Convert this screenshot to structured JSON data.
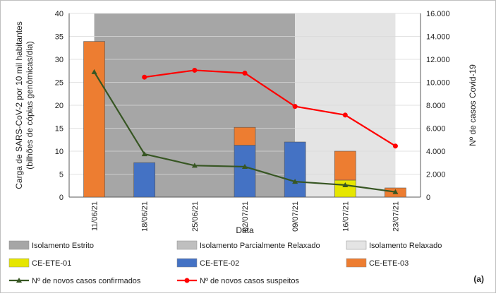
{
  "chart_data": {
    "type": "bar+line",
    "xlabel": "Data",
    "ylabel_left": "Carga de SARS-CoV-2 por 10 mil habitantes (bilhões de cópias genômicas/dia)",
    "ylabel_left_lines": [
      "Carga de SARS-CoV-2 por 10 mil habitantes",
      "(bilhões de cópias genômicas/dia)"
    ],
    "ylabel_right": "Nº de casos Covid-19",
    "ylim_left": [
      0,
      40
    ],
    "yticks_left": [
      "0",
      "5",
      "10",
      "15",
      "20",
      "25",
      "30",
      "35",
      "40"
    ],
    "ylim_right": [
      0,
      16000
    ],
    "yticks_right": [
      "0",
      "2.000",
      "4.000",
      "6.000",
      "8.000",
      "10.000",
      "12.000",
      "14.000",
      "16.000"
    ],
    "categories": [
      "11/06/21",
      "18/06/21",
      "25/06/21",
      "02/07/21",
      "09/07/21",
      "16/07/21",
      "23/07/21"
    ],
    "bar_series": [
      {
        "name": "CE-ETE-01",
        "color": "#e6e600",
        "values": [
          0,
          0,
          0,
          0,
          0,
          3.7,
          0
        ]
      },
      {
        "name": "CE-ETE-02",
        "color": "#4472c4",
        "values": [
          0,
          7.5,
          0,
          11.3,
          12.0,
          0,
          0
        ]
      },
      {
        "name": "CE-ETE-03",
        "color": "#ed7d31",
        "values": [
          33.9,
          0,
          0,
          3.9,
          0,
          6.3,
          2.0
        ]
      }
    ],
    "line_series": [
      {
        "name": "Nº de novos casos confirmados",
        "color": "#375623",
        "axis": "right",
        "values": [
          10900,
          3750,
          2750,
          2650,
          1350,
          1050,
          450
        ]
      },
      {
        "name": "Nº de novos casos suspeitos",
        "color": "#ff0000",
        "axis": "right",
        "values": [
          null,
          10450,
          11050,
          10800,
          7900,
          7150,
          4450
        ]
      }
    ],
    "phases": [
      {
        "name": "Isolamento Estrito",
        "color": "#a6a6a6",
        "from_index": 0.5,
        "to_index": 4.0
      },
      {
        "name": "Isolamento Parcialmente Relaxado",
        "color": "#bfbfbf",
        "from_index": 0.0,
        "to_index": 0.0
      },
      {
        "name": "Isolamento Relaxado",
        "color": "#e4e4e4",
        "from_index": 4.0,
        "to_index": 6.0
      }
    ],
    "panel_label": "(a)"
  },
  "colors": {
    "strict": "#a6a6a6",
    "partial": "#bfbfbf",
    "relaxed": "#e4e4e4",
    "grid": "#d9d9d9",
    "axis": "#595959"
  }
}
